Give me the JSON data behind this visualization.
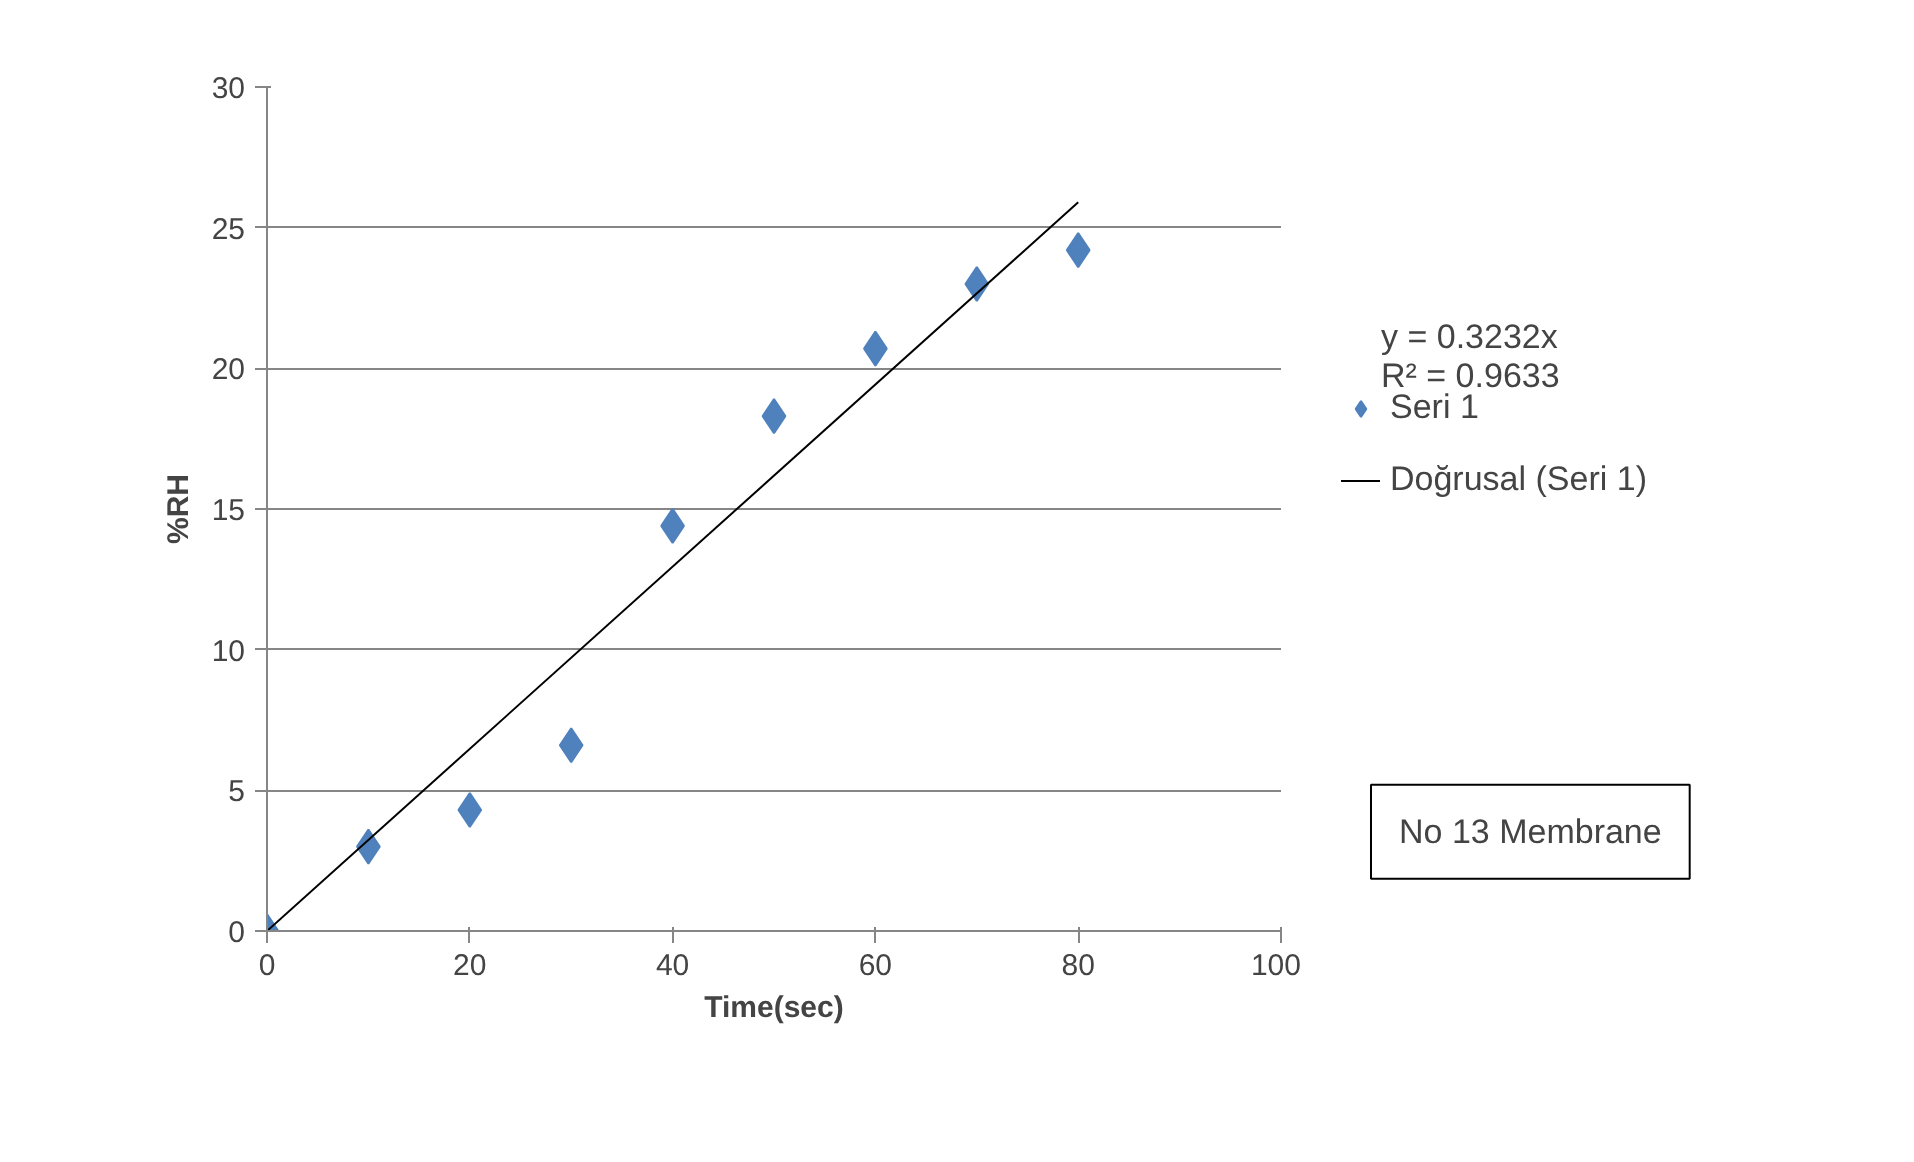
{
  "chart_data": {
    "type": "scatter",
    "xlabel": "Time(sec)",
    "ylabel": "%RH",
    "xlim": [
      0,
      100
    ],
    "xticks": [
      0,
      20,
      40,
      60,
      80,
      100
    ],
    "ylim": [
      0,
      30
    ],
    "yticks": [
      0,
      5,
      10,
      15,
      20,
      25,
      30
    ],
    "grid": "y",
    "legend": "right",
    "series": [
      {
        "name": "Seri 1",
        "marker": "diamond",
        "color": "#4f81bd",
        "x": [
          0,
          10,
          20,
          30,
          40,
          50,
          60,
          70,
          80
        ],
        "values": [
          0,
          3.0,
          4.3,
          6.6,
          14.4,
          18.3,
          20.7,
          23.0,
          24.2
        ]
      },
      {
        "name": "Doğrusal (Seri 1)",
        "type": "line",
        "marker": "none",
        "color": "#000000",
        "x": [
          0,
          80
        ],
        "values": [
          0,
          25.9
        ]
      }
    ],
    "annotations": [
      "y = 0.3232x",
      "R² = 0.9633",
      "No 13 Membrane"
    ]
  }
}
